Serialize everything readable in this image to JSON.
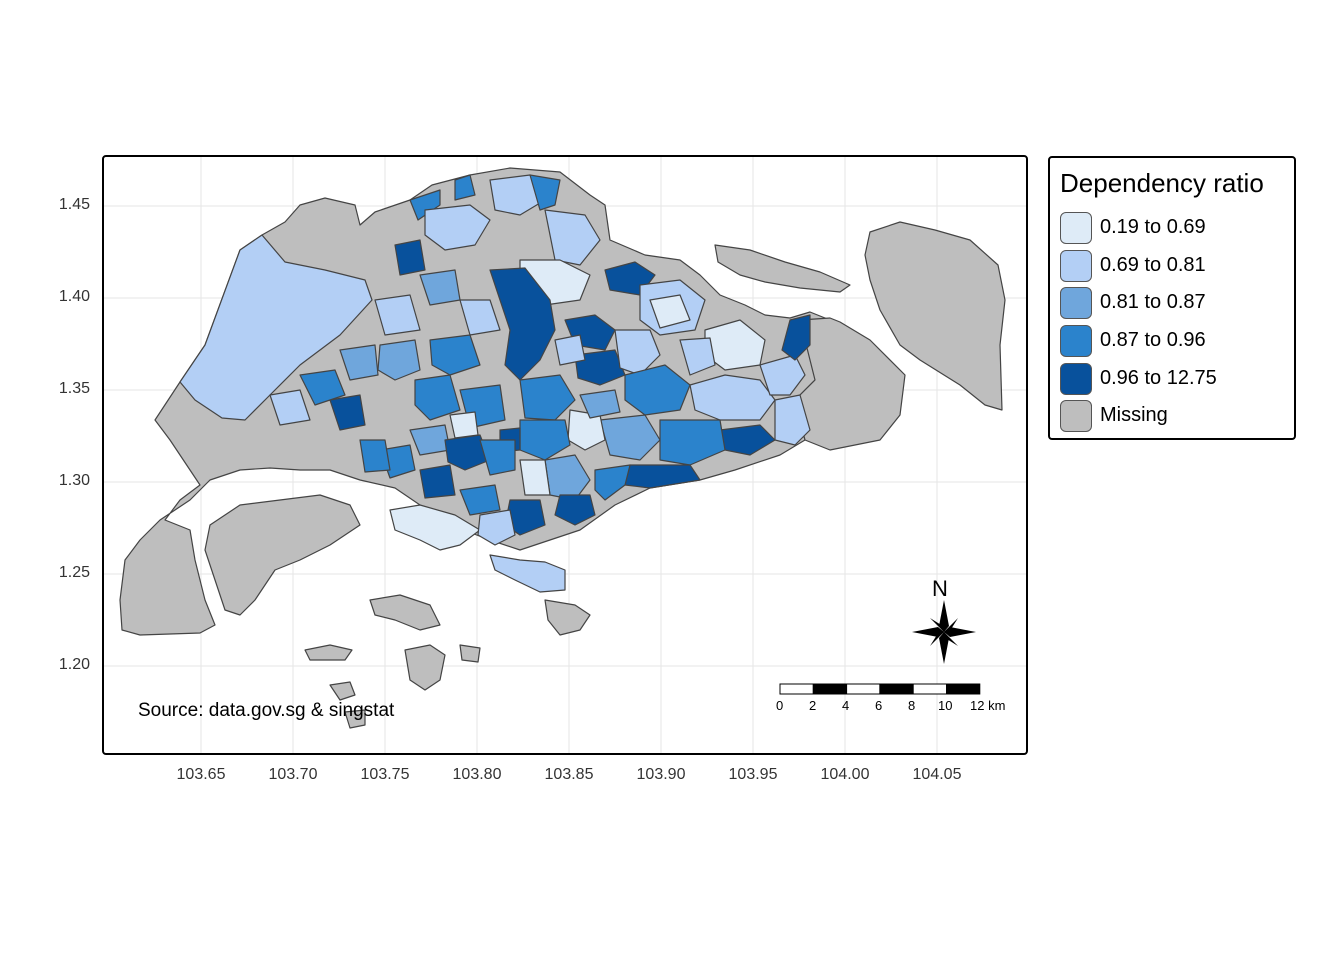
{
  "legend": {
    "title": "Dependency ratio",
    "items": [
      {
        "label": "0.19 to 0.69",
        "color": "#deebf7"
      },
      {
        "label": "0.69 to 0.81",
        "color": "#b3cff5"
      },
      {
        "label": "0.81 to 0.87",
        "color": "#6fa6dc"
      },
      {
        "label": "0.87 to 0.96",
        "color": "#2b83cc"
      },
      {
        "label": "0.96 to 12.75",
        "color": "#08519c"
      },
      {
        "label": "Missing",
        "color": "#bebebe"
      }
    ]
  },
  "axes": {
    "y_ticks": [
      "1.45",
      "1.40",
      "1.35",
      "1.30",
      "1.25",
      "1.20"
    ],
    "x_ticks": [
      "103.65",
      "103.70",
      "103.75",
      "103.80",
      "103.85",
      "103.90",
      "103.95",
      "104.00",
      "104.05"
    ]
  },
  "source": "Source: data.gov.sg & singstat",
  "scale_bar": {
    "labels": [
      "0",
      "2",
      "4",
      "6",
      "8",
      "10",
      "12 km"
    ]
  },
  "north_arrow": {
    "label": "N",
    "icon": "compass-star-icon"
  }
}
